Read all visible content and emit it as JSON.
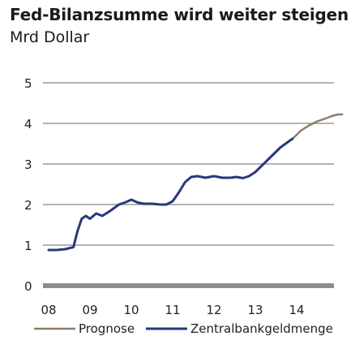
{
  "chart_data": {
    "type": "line",
    "title": "Fed-Bilanzsumme wird weiter steigen",
    "subtitle": "Mrd Dollar",
    "y_ticks": [
      "0",
      "1",
      "2",
      "3",
      "4",
      "5"
    ],
    "x_ticks": [
      "08",
      "09",
      "10",
      "11",
      "12",
      "13",
      "14"
    ],
    "xlim": [
      2008,
      2015.1
    ],
    "ylim": [
      0,
      5
    ],
    "grid": true,
    "legend_position": "bottom",
    "series": [
      {
        "name": "Prognose",
        "color": "#8c7b68",
        "points": [
          [
            2013.9,
            3.62
          ],
          [
            2014.1,
            3.82
          ],
          [
            2014.3,
            3.95
          ],
          [
            2014.5,
            4.05
          ],
          [
            2014.7,
            4.12
          ],
          [
            2014.85,
            4.18
          ],
          [
            2015.0,
            4.22
          ],
          [
            2015.1,
            4.22
          ]
        ]
      },
      {
        "name": "Zentralbankgeldmenge",
        "color": "#27397c",
        "points": [
          [
            2008.0,
            0.88
          ],
          [
            2008.2,
            0.88
          ],
          [
            2008.4,
            0.9
          ],
          [
            2008.6,
            0.95
          ],
          [
            2008.7,
            1.35
          ],
          [
            2008.8,
            1.65
          ],
          [
            2008.9,
            1.72
          ],
          [
            2009.0,
            1.65
          ],
          [
            2009.15,
            1.78
          ],
          [
            2009.3,
            1.72
          ],
          [
            2009.5,
            1.85
          ],
          [
            2009.7,
            2.0
          ],
          [
            2009.85,
            2.05
          ],
          [
            2010.0,
            2.12
          ],
          [
            2010.15,
            2.05
          ],
          [
            2010.3,
            2.02
          ],
          [
            2010.5,
            2.02
          ],
          [
            2010.7,
            2.0
          ],
          [
            2010.85,
            2.0
          ],
          [
            2011.0,
            2.08
          ],
          [
            2011.15,
            2.3
          ],
          [
            2011.3,
            2.55
          ],
          [
            2011.45,
            2.68
          ],
          [
            2011.6,
            2.7
          ],
          [
            2011.8,
            2.66
          ],
          [
            2012.0,
            2.7
          ],
          [
            2012.2,
            2.66
          ],
          [
            2012.4,
            2.66
          ],
          [
            2012.55,
            2.68
          ],
          [
            2012.7,
            2.65
          ],
          [
            2012.85,
            2.7
          ],
          [
            2013.0,
            2.8
          ],
          [
            2013.2,
            3.0
          ],
          [
            2013.4,
            3.2
          ],
          [
            2013.6,
            3.4
          ],
          [
            2013.8,
            3.55
          ],
          [
            2013.9,
            3.62
          ]
        ]
      }
    ]
  }
}
